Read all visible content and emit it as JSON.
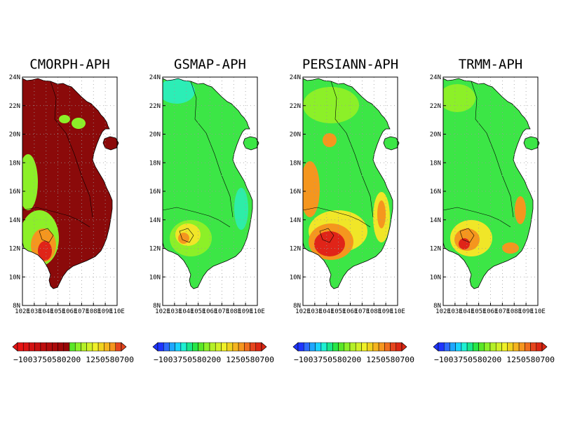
{
  "panels": [
    {
      "title": "CMORPH-APH",
      "scheme": "cmorph"
    },
    {
      "title": "GSMAP-APH",
      "scheme": "gsmap"
    },
    {
      "title": "PERSIANN-APH",
      "scheme": "persiann"
    },
    {
      "title": "TRMM-APH",
      "scheme": "trmm"
    }
  ],
  "map_extent": {
    "lon_min": 102,
    "lon_max": 110,
    "lat_min": 8,
    "lat_max": 24
  },
  "lat_ticks": [
    "8N",
    "10N",
    "12N",
    "14N",
    "16N",
    "18N",
    "20N",
    "22N",
    "24N"
  ],
  "lon_ticks": [
    "102E",
    "103E",
    "104E",
    "105E",
    "106E",
    "107E",
    "108E",
    "109E",
    "110E"
  ],
  "colorbar": {
    "colors_blue_to_red": [
      "#1f35ff",
      "#2f6bff",
      "#1ea6ff",
      "#19d2ff",
      "#1ef0d2",
      "#19e68c",
      "#28e646",
      "#5ae628",
      "#8cf028",
      "#b4f028",
      "#d2f028",
      "#f0f028",
      "#f0d21e",
      "#f5b41e",
      "#f5961e",
      "#f06e1e",
      "#e6461e",
      "#dc2814"
    ],
    "colors_cmorph": [
      "#e61414",
      "#dc1414",
      "#d21212",
      "#c81010",
      "#be0e0e",
      "#b40c0c",
      "#aa0a0a",
      "#a00808",
      "#960606",
      "#5ae628",
      "#8cf028",
      "#b4f028",
      "#d2f028",
      "#f0f028",
      "#f0d21e",
      "#f5b41e",
      "#f5961e",
      "#e6461e"
    ],
    "label": "−1003750580200 1250580700"
  },
  "colors": {
    "dark_red": "#8b0a0a",
    "red": "#e02418",
    "orange": "#f5961e",
    "yellow": "#f0e628",
    "green": "#3ce646",
    "light_green": "#8cf028",
    "cyan": "#28f0d2"
  }
}
